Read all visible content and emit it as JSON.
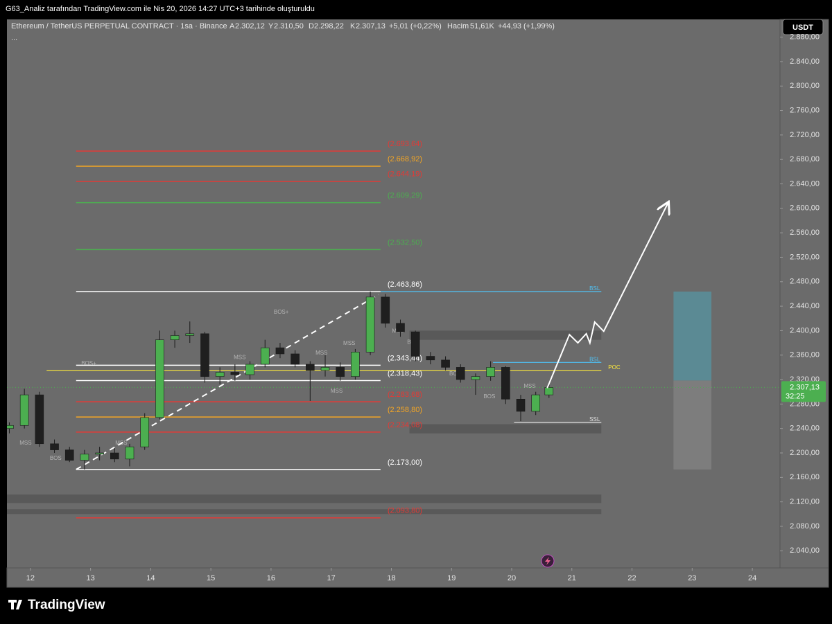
{
  "header": {
    "title": "G63_Analiz tarafından TradingView.com ile Nis 20, 2026 14:27 UTC+3 tarihinde oluşturuldu"
  },
  "legend": {
    "symbol": "Ethereum / TetherUS PERPETUAL CONTRACT · 1sa · Binance",
    "open_label": "A",
    "open": "2.302,12",
    "high_label": "Y",
    "high": "2.310,50",
    "low_label": "D",
    "low": "2.298,22",
    "close_label": "K",
    "close": "2.307,13",
    "change": "+5,01 (+0,22%)",
    "volume_label": "Hacim",
    "volume": "51,61K",
    "volume_change": "+44,93 (+1,99%)",
    "more": "..."
  },
  "currency": "USDT",
  "branding": {
    "logo": "TradingView"
  },
  "chart_data": {
    "type": "candlestick",
    "x": [
      11.65,
      11.9,
      12.15,
      12.4,
      12.65,
      12.9,
      13.15,
      13.4,
      13.65,
      13.9,
      14.15,
      14.4,
      14.65,
      14.9,
      15.15,
      15.4,
      15.65,
      15.9,
      16.15,
      16.4,
      16.65,
      16.9,
      17.15,
      17.4,
      17.65,
      17.9,
      18.15,
      18.4,
      18.65,
      18.9,
      19.15,
      19.4,
      19.65,
      19.9,
      20.15,
      20.4,
      20.62
    ],
    "open": [
      2240,
      2245,
      2295,
      2215,
      2205,
      2188,
      2198,
      2200,
      2190,
      2210,
      2258,
      2385,
      2392,
      2395,
      2325,
      2332,
      2328,
      2345,
      2372,
      2362,
      2345,
      2335,
      2340,
      2325,
      2365,
      2455,
      2412,
      2398,
      2358,
      2352,
      2340,
      2320,
      2325,
      2340,
      2288,
      2268,
      2295
    ],
    "high": [
      2250,
      2305,
      2300,
      2222,
      2210,
      2205,
      2210,
      2208,
      2215,
      2265,
      2400,
      2400,
      2415,
      2398,
      2340,
      2345,
      2350,
      2385,
      2380,
      2368,
      2350,
      2360,
      2348,
      2370,
      2463.86,
      2460,
      2418,
      2400,
      2365,
      2358,
      2345,
      2330,
      2350,
      2342,
      2295,
      2300,
      2315
    ],
    "low": [
      2232,
      2240,
      2210,
      2200,
      2185,
      2173,
      2188,
      2185,
      2178,
      2205,
      2255,
      2372,
      2380,
      2315,
      2312,
      2318,
      2320,
      2340,
      2355,
      2340,
      2285,
      2325,
      2318,
      2320,
      2360,
      2405,
      2390,
      2350,
      2345,
      2335,
      2315,
      2295,
      2318,
      2280,
      2252,
      2262,
      2290
    ],
    "close": [
      2245,
      2295,
      2215,
      2205,
      2188,
      2198,
      2200,
      2190,
      2210,
      2258,
      2385,
      2392,
      2395,
      2325,
      2332,
      2328,
      2345,
      2372,
      2362,
      2345,
      2335,
      2340,
      2325,
      2365,
      2455,
      2412,
      2398,
      2358,
      2352,
      2340,
      2320,
      2325,
      2340,
      2288,
      2268,
      2295,
      2307.13
    ],
    "up_color": "#4caf50",
    "down_color": "#1f1f1f",
    "xlim": [
      11.61,
      24.46
    ],
    "xticks": [
      12,
      13,
      14,
      15,
      16,
      17,
      18,
      19,
      20,
      21,
      22,
      23,
      24
    ],
    "ylim": [
      2012,
      2909
    ],
    "yticks": [
      {
        "value": 2040,
        "label": "2.040,00"
      },
      {
        "value": 2080,
        "label": "2.080,00"
      },
      {
        "value": 2120,
        "label": "2.120,00"
      },
      {
        "value": 2160,
        "label": "2.160,00"
      },
      {
        "value": 2200,
        "label": "2.200,00"
      },
      {
        "value": 2240,
        "label": "2.240,00"
      },
      {
        "value": 2280,
        "label": "2.280,00"
      },
      {
        "value": 2320,
        "label": "2.320,00"
      },
      {
        "value": 2360,
        "label": "2.360,00"
      },
      {
        "value": 2400,
        "label": "2.400,00"
      },
      {
        "value": 2440,
        "label": "2.440,00"
      },
      {
        "value": 2480,
        "label": "2.480,00"
      },
      {
        "value": 2520,
        "label": "2.520,00"
      },
      {
        "value": 2560,
        "label": "2.560,00"
      },
      {
        "value": 2600,
        "label": "2.600,00"
      },
      {
        "value": 2640,
        "label": "2.640,00"
      },
      {
        "value": 2680,
        "label": "2.680,00"
      },
      {
        "value": 2720,
        "label": "2.720,00"
      },
      {
        "value": 2760,
        "label": "2.760,00"
      },
      {
        "value": 2800,
        "label": "2.800,00"
      },
      {
        "value": 2840,
        "label": "2.840,00"
      },
      {
        "value": 2880,
        "label": "2.880,00"
      }
    ],
    "grid": false,
    "level_span": [
      12.76,
      17.82
    ],
    "levels": [
      {
        "label": "(2.693,64)",
        "value": 2693.64,
        "color": "#e53935"
      },
      {
        "label": "(2.668,92)",
        "value": 2668.92,
        "color": "#f5a623"
      },
      {
        "label": "(2.644,19)",
        "value": 2644.19,
        "color": "#e53935"
      },
      {
        "label": "(2.609,29)",
        "value": 2609.29,
        "color": "#4caf50"
      },
      {
        "label": "(2.532,50)",
        "value": 2532.5,
        "color": "#4caf50"
      },
      {
        "label": "(2.463,86)",
        "value": 2463.86,
        "color": "#ffffff"
      },
      {
        "label": "(2.343,44)",
        "value": 2343.44,
        "color": "#ffffff"
      },
      {
        "label": "(2.318,43)",
        "value": 2318.43,
        "color": "#ffffff"
      },
      {
        "label": "(2.283,68)",
        "value": 2283.68,
        "color": "#e53935"
      },
      {
        "label": "(2.258,80)",
        "value": 2258.8,
        "color": "#f5a623"
      },
      {
        "label": "(2.234,08)",
        "value": 2234.08,
        "color": "#e53935"
      },
      {
        "label": "(2.173,00)",
        "value": 2173,
        "color": "#ffffff"
      },
      {
        "label": "(2.093,80)",
        "value": 2093.8,
        "color": "#e53935"
      }
    ],
    "markers": [
      {
        "label": "BSL",
        "x": [
          17.82,
          21.49
        ],
        "value": 2463.86,
        "color": "#4fc3f7"
      },
      {
        "label": "BSL",
        "x": [
          19.69,
          21.49
        ],
        "value": 2348,
        "color": "#4fc3f7"
      },
      {
        "label": "SSL",
        "x": [
          20.04,
          21.49
        ],
        "value": 2250,
        "color": "#e0e0e0"
      },
      {
        "label": "POC",
        "x": [
          12.27,
          21.49
        ],
        "value": 2335,
        "color": "#ffeb3b"
      }
    ],
    "structure": [
      {
        "label": "BOS+",
        "x": 16.17,
        "y": 2430
      },
      {
        "label": "BOS+",
        "x": 12.97,
        "y": 2346
      },
      {
        "label": "MSS",
        "x": 11.92,
        "y": 2216
      },
      {
        "label": "BOS",
        "x": 12.42,
        "y": 2191
      },
      {
        "label": "MSS",
        "x": 13.51,
        "y": 2216
      },
      {
        "label": "MSS",
        "x": 15.48,
        "y": 2356
      },
      {
        "label": "MSS",
        "x": 16.84,
        "y": 2363
      },
      {
        "label": "MSS",
        "x": 17.3,
        "y": 2379
      },
      {
        "label": "MSS",
        "x": 17.09,
        "y": 2301
      },
      {
        "label": "MSS",
        "x": 18.11,
        "y": 2399
      },
      {
        "label": "BOS",
        "x": 18.36,
        "y": 2381
      },
      {
        "label": "BOS",
        "x": 19.06,
        "y": 2329
      },
      {
        "label": "BOS",
        "x": 19.63,
        "y": 2292
      },
      {
        "label": "MSS",
        "x": 20.3,
        "y": 2309
      }
    ],
    "zones": [
      {
        "x": [
          11.61,
          21.49
        ],
        "y": [
          2118,
          2132
        ]
      },
      {
        "x": [
          11.61,
          21.49
        ],
        "y": [
          2100,
          2108
        ]
      },
      {
        "x": [
          18.3,
          21.49
        ],
        "y": [
          2385,
          2400
        ]
      },
      {
        "x": [
          18.3,
          21.49
        ],
        "y": [
          2232,
          2247
        ]
      }
    ],
    "trendline": {
      "x": [
        12.76,
        17.79
      ],
      "y": [
        2173,
        2459
      ]
    },
    "projection": {
      "x": [
        20.59,
        20.96,
        21.1,
        21.24,
        21.3,
        21.38,
        21.53,
        22.6
      ],
      "y": [
        2306,
        2393.5,
        2380,
        2395,
        2380,
        2414,
        2399,
        2609
      ]
    },
    "position": {
      "x": [
        22.69,
        23.32
      ],
      "target": 2463.86,
      "entry": 2318.43,
      "stop": 2173
    },
    "last": {
      "value": 2307.13,
      "label": "2.307,13",
      "countdown": "32:25"
    }
  }
}
